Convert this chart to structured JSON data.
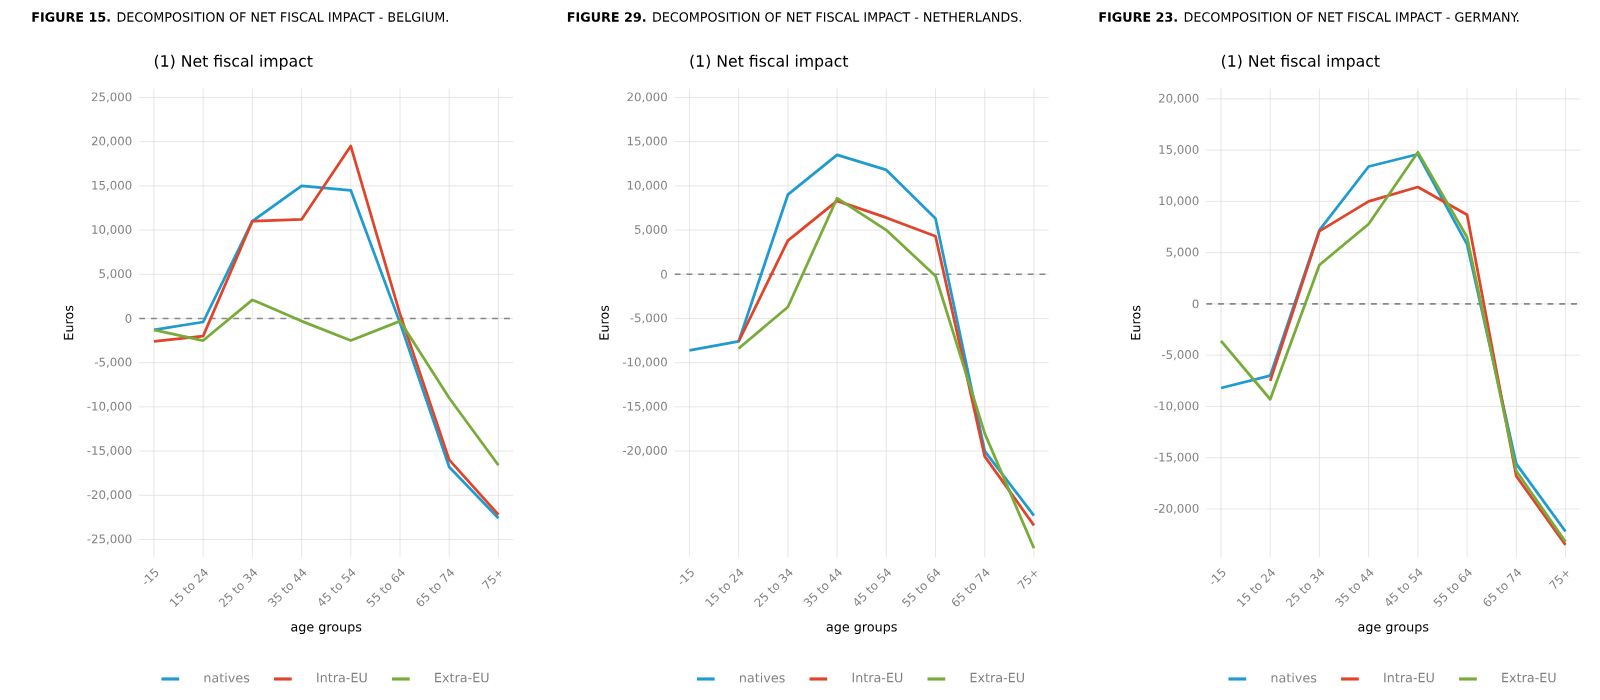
{
  "chart_data": [
    {
      "type": "line",
      "title": "**FIGURE 15.** DECOMPOSITION OF NET FISCAL IMPACT - BELGIUM.",
      "subtitle": "(1) Net fiscal impact",
      "xlabel": "age groups",
      "ylabel": "Euros",
      "categories": [
        "-15",
        "15 to 24",
        "25 to 34",
        "35 to 44",
        "45 to 54",
        "55 to 64",
        "65 to 74",
        "75+"
      ],
      "series": [
        {
          "name": "natives",
          "color": "#1f9bd1",
          "values": [
            -1300,
            -400,
            11000,
            15000,
            14500,
            -500,
            -16800,
            -22600
          ]
        },
        {
          "name": "Intra-EU",
          "color": "#e0442a",
          "values": [
            -2600,
            -2000,
            11000,
            11200,
            19500,
            500,
            -16000,
            -22200
          ]
        },
        {
          "name": "Extra-EU",
          "color": "#78ac3a",
          "values": [
            -1300,
            -2500,
            2100,
            -300,
            -2500,
            -300,
            -9000,
            -16600
          ]
        }
      ],
      "ylim": [
        -27000,
        26000
      ],
      "yticks": [
        {
          "value": -25000,
          "label": "-25,000"
        },
        {
          "value": -20000,
          "label": "-20,000"
        },
        {
          "value": -15000,
          "label": "-15,000"
        },
        {
          "value": -10000,
          "label": "-10,000"
        },
        {
          "value": -5000,
          "label": "-5,000"
        },
        0,
        {
          "value": 5000,
          "label": "5,000"
        },
        {
          "value": 10000,
          "label": "10,000"
        },
        {
          "value": 15000,
          "label": "15,000"
        },
        {
          "value": 20000,
          "label": "20,000"
        },
        {
          "value": 25000,
          "label": "25,000"
        }
      ],
      "ref_lines": [
        {
          "axis": "y",
          "value": 0,
          "color": "#888888",
          "line_style": "dashed"
        }
      ],
      "grid": true,
      "legend": "bottom",
      "marker": "none"
    },
    {
      "type": "line",
      "title": "**FIGURE 29.** DECOMPOSITION OF NET FISCAL IMPACT - NETHERLANDS.",
      "subtitle": "(1) Net fiscal impact",
      "xlabel": "age groups",
      "ylabel": "Euros",
      "categories": [
        "-15",
        "15 to 24",
        "25 to 34",
        "35 to 44",
        "45 to 54",
        "55 to 64",
        "65 to 74",
        "75+"
      ],
      "series": [
        {
          "name": "natives",
          "color": "#1f9bd1",
          "values": [
            -8600,
            -7600,
            9000,
            13500,
            11800,
            6300,
            -20000,
            -27300
          ]
        },
        {
          "name": "Intra-EU",
          "color": "#e0442a",
          "values": [
            null,
            -7600,
            3800,
            8300,
            6400,
            4300,
            -20600,
            -28400
          ]
        },
        {
          "name": "Extra-EU",
          "color": "#78ac3a",
          "values": [
            null,
            -8400,
            -3700,
            8600,
            5000,
            -200,
            -18000,
            -31000
          ]
        }
      ],
      "ylim": [
        -32000,
        21000
      ],
      "yticks": [
        {
          "value": -20000,
          "label": "-20,000"
        },
        {
          "value": -15000,
          "label": "-15,000"
        },
        {
          "value": -10000,
          "label": "-10,000"
        },
        {
          "value": -5000,
          "label": "-5,000"
        },
        0,
        {
          "value": 5000,
          "label": "5,000"
        },
        {
          "value": 10000,
          "label": "10,000"
        },
        {
          "value": 15000,
          "label": "15,000"
        },
        {
          "value": 20000,
          "label": "20,000"
        }
      ],
      "ref_lines": [
        {
          "axis": "y",
          "value": 0,
          "color": "#888888",
          "line_style": "dashed"
        }
      ],
      "grid": true,
      "legend": "bottom",
      "marker": "none"
    },
    {
      "type": "line",
      "title": "**FIGURE 23.** DECOMPOSITION OF NET FISCAL IMPACT - GERMANY.",
      "subtitle": "(1) Net fiscal impact",
      "xlabel": "age groups",
      "ylabel": "Euros",
      "categories": [
        "-15",
        "15 to 24",
        "25 to 34",
        "35 to 44",
        "45 to 54",
        "55 to 64",
        "65 to 74",
        "75+"
      ],
      "series": [
        {
          "name": "natives",
          "color": "#1f9bd1",
          "values": [
            -8200,
            -7000,
            7200,
            13400,
            14600,
            5800,
            -15600,
            -22200
          ]
        },
        {
          "name": "Intra-EU",
          "color": "#e0442a",
          "values": [
            null,
            -7500,
            7100,
            10000,
            11400,
            8700,
            -16800,
            -23500
          ]
        },
        {
          "name": "Extra-EU",
          "color": "#78ac3a",
          "values": [
            -3600,
            -9300,
            3800,
            7800,
            14800,
            6500,
            -16300,
            -23200
          ]
        }
      ],
      "ylim": [
        -24700,
        21000
      ],
      "yticks": [
        {
          "value": -20000,
          "label": "-20,000"
        },
        {
          "value": -15000,
          "label": "-15,000"
        },
        {
          "value": -10000,
          "label": "-10,000"
        },
        {
          "value": -5000,
          "label": "-5,000"
        },
        0,
        {
          "value": 5000,
          "label": "5,000"
        },
        {
          "value": 10000,
          "label": "10,000"
        },
        {
          "value": 15000,
          "label": "15,000"
        },
        {
          "value": 20000,
          "label": "20,000"
        }
      ],
      "ref_lines": [
        {
          "axis": "y",
          "value": 0,
          "color": "#888888",
          "line_style": "dashed"
        }
      ],
      "grid": true,
      "legend": "bottom",
      "marker": "none"
    }
  ]
}
